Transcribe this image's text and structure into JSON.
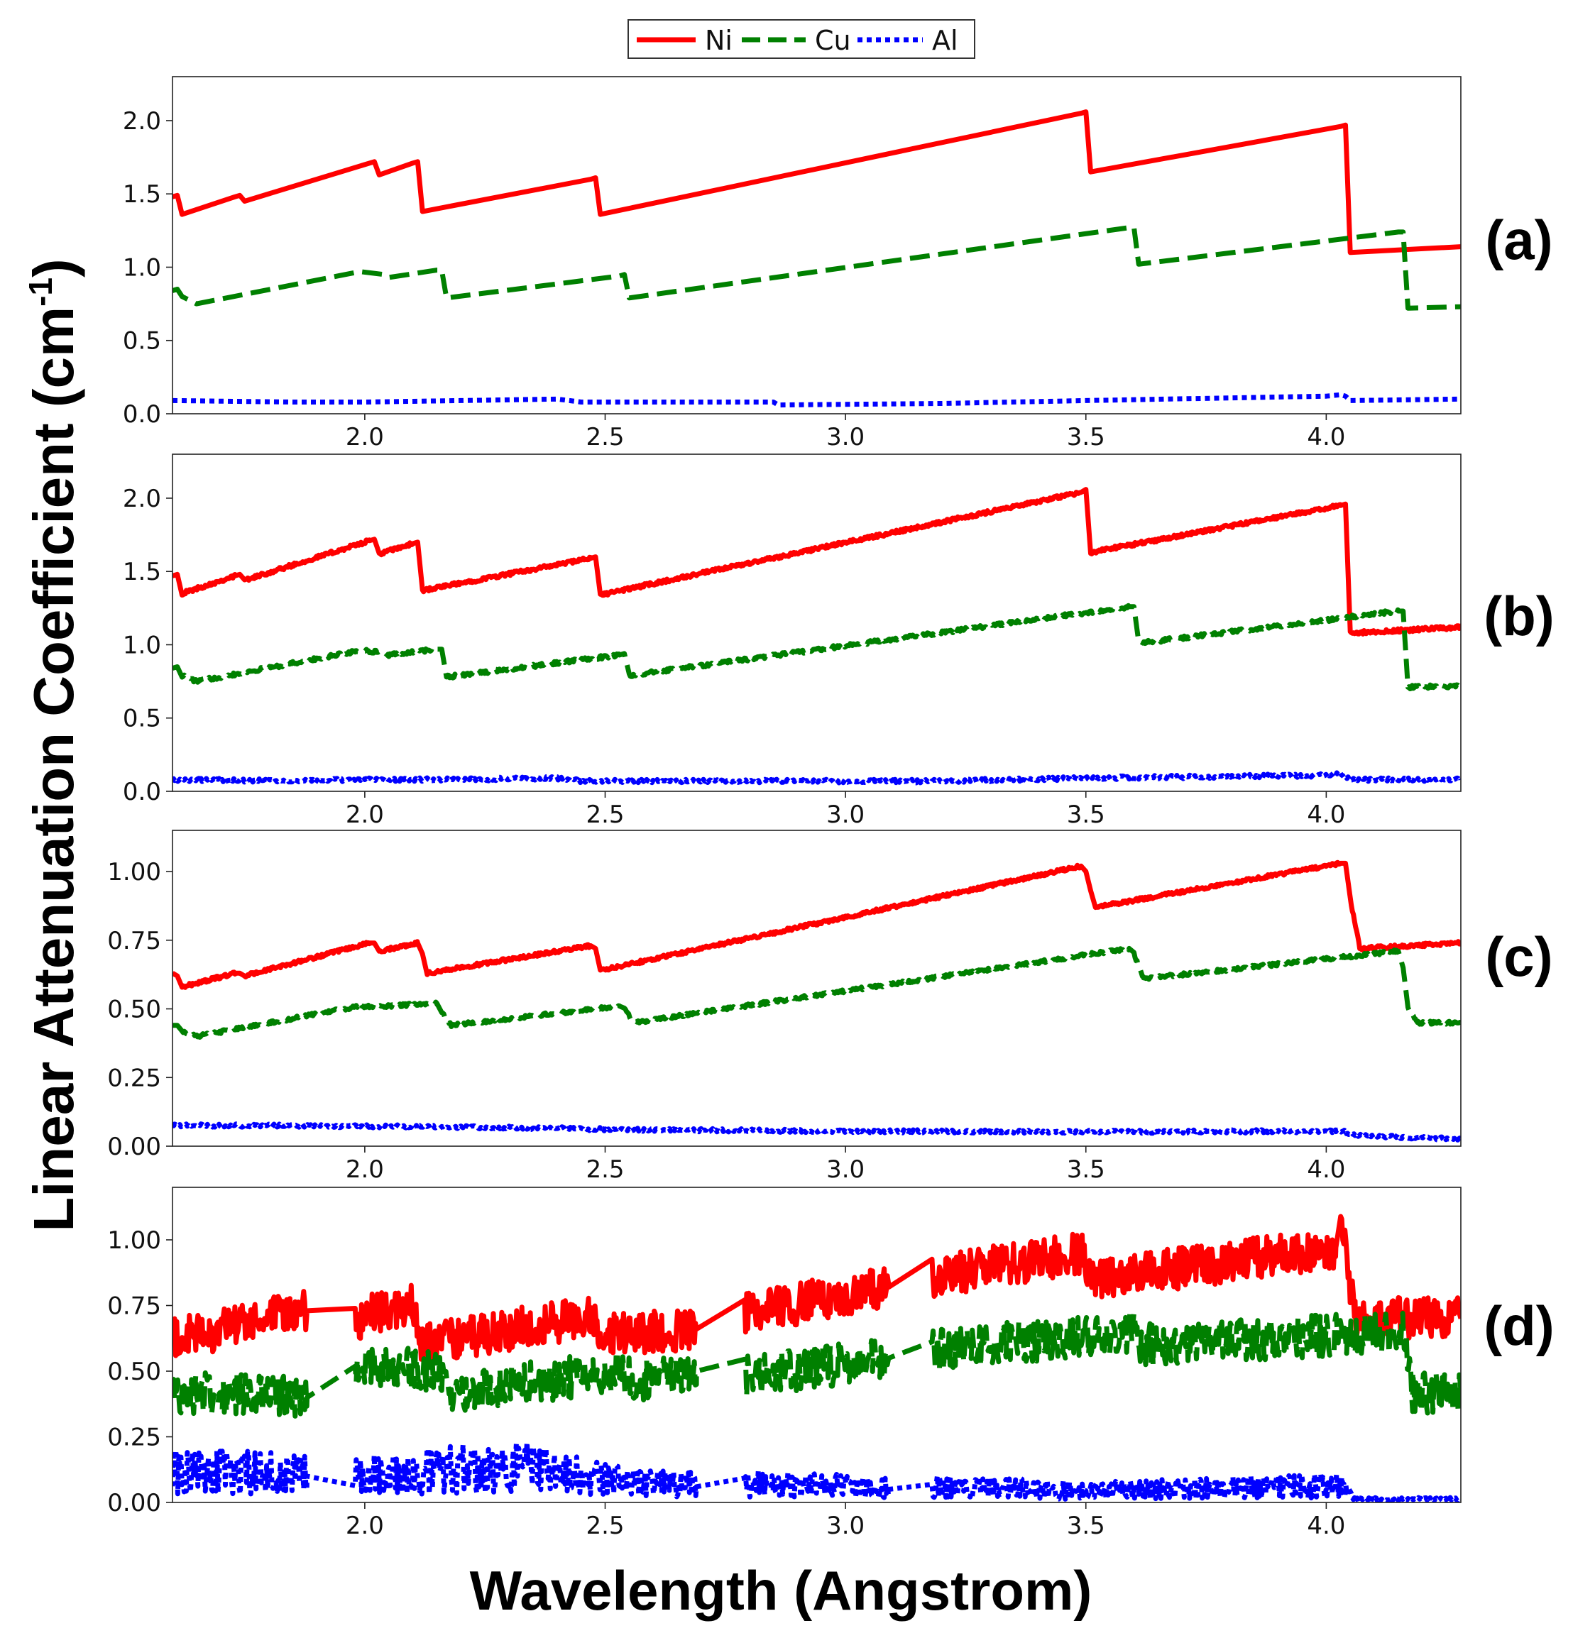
{
  "figure": {
    "ylabel_main": "Linear Attenuation Coefficient (cm",
    "ylabel_sup": "-1",
    "ylabel_close": ")",
    "xlabel": "Wavelength (Angstrom)"
  },
  "legend": [
    {
      "label": "Ni",
      "color": "#ff0000",
      "style": "solid"
    },
    {
      "label": "Cu",
      "color": "#008000",
      "style": "dashed"
    },
    {
      "label": "Al",
      "color": "#0000ff",
      "style": "dotted"
    }
  ],
  "chart_data": [
    {
      "type": "line",
      "panel_label": "(a)",
      "xlim": [
        1.6,
        4.28
      ],
      "ylim": [
        0.0,
        2.3
      ],
      "xticks": [
        "2.0",
        "2.5",
        "3.0",
        "3.5",
        "4.0"
      ],
      "yticks": [
        "0.0",
        "0.5",
        "1.0",
        "1.5",
        "2.0"
      ],
      "noise": 0,
      "series": [
        {
          "name": "Ni",
          "x": [
            1.6,
            1.61,
            1.62,
            1.73,
            1.74,
            1.75,
            2.01,
            2.02,
            2.03,
            2.1,
            2.11,
            2.12,
            2.47,
            2.48,
            2.49,
            3.49,
            3.5,
            3.51,
            4.03,
            4.04,
            4.05,
            4.28
          ],
          "y": [
            1.48,
            1.49,
            1.36,
            1.48,
            1.49,
            1.45,
            1.71,
            1.72,
            1.63,
            1.71,
            1.72,
            1.38,
            1.6,
            1.61,
            1.36,
            2.05,
            2.06,
            1.65,
            1.96,
            1.97,
            1.1,
            1.14
          ]
        },
        {
          "name": "Cu",
          "x": [
            1.6,
            1.61,
            1.62,
            1.65,
            1.99,
            2.04,
            2.05,
            2.15,
            2.16,
            2.17,
            2.53,
            2.54,
            2.55,
            3.59,
            3.6,
            3.61,
            4.15,
            4.16,
            4.17,
            4.28
          ],
          "y": [
            0.84,
            0.85,
            0.8,
            0.75,
            0.97,
            0.95,
            0.93,
            0.98,
            0.98,
            0.79,
            0.94,
            0.95,
            0.79,
            1.27,
            1.27,
            1.02,
            1.24,
            1.24,
            0.72,
            0.73
          ]
        },
        {
          "name": "Al",
          "x": [
            1.6,
            1.85,
            2.0,
            2.2,
            2.4,
            2.45,
            2.7,
            2.85,
            2.86,
            3.2,
            3.5,
            4.0,
            4.03,
            4.04,
            4.05,
            4.28
          ],
          "y": [
            0.09,
            0.08,
            0.08,
            0.09,
            0.1,
            0.08,
            0.08,
            0.08,
            0.06,
            0.07,
            0.09,
            0.12,
            0.13,
            0.12,
            0.09,
            0.1
          ]
        }
      ]
    },
    {
      "type": "line",
      "panel_label": "(b)",
      "xlim": [
        1.6,
        4.28
      ],
      "ylim": [
        0.0,
        2.3
      ],
      "xticks": [
        "2.0",
        "2.5",
        "3.0",
        "3.5",
        "4.0"
      ],
      "yticks": [
        "0.0",
        "0.5",
        "1.0",
        "1.5",
        "2.0"
      ],
      "noise": 0.012,
      "series": [
        {
          "name": "Ni",
          "x": [
            1.6,
            1.61,
            1.62,
            1.73,
            1.74,
            1.75,
            2.01,
            2.02,
            2.03,
            2.1,
            2.11,
            2.12,
            2.47,
            2.48,
            2.49,
            3.49,
            3.5,
            3.51,
            4.03,
            4.04,
            4.05,
            4.28
          ],
          "y": [
            1.47,
            1.48,
            1.35,
            1.47,
            1.48,
            1.44,
            1.71,
            1.72,
            1.62,
            1.69,
            1.7,
            1.37,
            1.59,
            1.6,
            1.34,
            2.04,
            2.06,
            1.63,
            1.95,
            1.96,
            1.08,
            1.12
          ]
        },
        {
          "name": "Cu",
          "x": [
            1.6,
            1.61,
            1.62,
            1.65,
            1.99,
            2.04,
            2.05,
            2.15,
            2.16,
            2.17,
            2.53,
            2.54,
            2.55,
            3.59,
            3.6,
            3.61,
            4.15,
            4.16,
            4.17,
            4.28
          ],
          "y": [
            0.84,
            0.85,
            0.79,
            0.75,
            0.96,
            0.95,
            0.93,
            0.97,
            0.97,
            0.78,
            0.93,
            0.94,
            0.79,
            1.26,
            1.26,
            1.01,
            1.23,
            1.23,
            0.71,
            0.72
          ]
        },
        {
          "name": "Al",
          "x": [
            1.6,
            1.85,
            2.0,
            2.2,
            2.4,
            2.45,
            2.7,
            2.85,
            3.2,
            3.5,
            4.0,
            4.03,
            4.05,
            4.28
          ],
          "y": [
            0.08,
            0.07,
            0.08,
            0.08,
            0.09,
            0.07,
            0.07,
            0.07,
            0.07,
            0.09,
            0.11,
            0.12,
            0.08,
            0.08
          ]
        }
      ]
    },
    {
      "type": "line",
      "panel_label": "(c)",
      "xlim": [
        1.6,
        4.28
      ],
      "ylim": [
        0.0,
        1.15
      ],
      "xticks": [
        "2.0",
        "2.5",
        "3.0",
        "3.5",
        "4.0"
      ],
      "yticks": [
        "0.00",
        "0.25",
        "0.50",
        "0.75",
        "1.00"
      ],
      "noise": 0.006,
      "series": [
        {
          "name": "Ni",
          "x": [
            1.6,
            1.61,
            1.62,
            1.73,
            1.74,
            1.75,
            2.01,
            2.02,
            2.03,
            2.11,
            2.12,
            2.13,
            2.47,
            2.48,
            2.49,
            3.49,
            3.5,
            3.51,
            3.52,
            4.03,
            4.04,
            4.05,
            4.07,
            4.28
          ],
          "y": [
            0.63,
            0.62,
            0.58,
            0.63,
            0.63,
            0.62,
            0.74,
            0.74,
            0.71,
            0.74,
            0.7,
            0.63,
            0.73,
            0.72,
            0.64,
            1.02,
            1.0,
            0.93,
            0.87,
            1.03,
            1.03,
            0.9,
            0.72,
            0.74
          ]
        },
        {
          "name": "Cu",
          "x": [
            1.6,
            1.61,
            1.62,
            1.65,
            1.99,
            2.04,
            2.15,
            2.16,
            2.18,
            2.53,
            2.54,
            2.56,
            3.59,
            3.6,
            3.62,
            4.15,
            4.16,
            4.17,
            4.19,
            4.28
          ],
          "y": [
            0.44,
            0.44,
            0.42,
            0.4,
            0.51,
            0.51,
            0.52,
            0.49,
            0.44,
            0.51,
            0.5,
            0.45,
            0.72,
            0.7,
            0.61,
            0.71,
            0.65,
            0.5,
            0.45,
            0.45
          ]
        },
        {
          "name": "Al",
          "x": [
            1.6,
            1.85,
            2.3,
            2.55,
            3.0,
            3.5,
            4.02,
            4.04,
            4.06,
            4.28
          ],
          "y": [
            0.075,
            0.075,
            0.068,
            0.06,
            0.055,
            0.052,
            0.055,
            0.052,
            0.04,
            0.025
          ]
        }
      ]
    },
    {
      "type": "line",
      "panel_label": "(d)",
      "xlim": [
        1.6,
        4.28
      ],
      "ylim": [
        0.0,
        1.2
      ],
      "xticks": [
        "2.0",
        "2.5",
        "3.0",
        "3.5",
        "4.0"
      ],
      "yticks": [
        "0.00",
        "0.25",
        "0.50",
        "0.75",
        "1.00"
      ],
      "noise": 0.08,
      "gap_segments": [
        [
          1.88,
          1.98
        ],
        [
          2.69,
          2.79
        ],
        [
          3.09,
          3.18
        ]
      ],
      "series": [
        {
          "name": "Ni",
          "x": [
            1.6,
            1.88,
            1.98,
            2.1,
            2.12,
            2.47,
            2.49,
            2.69,
            2.79,
            3.09,
            3.18,
            3.49,
            3.52,
            4.02,
            4.03,
            4.06,
            4.28
          ],
          "y": [
            0.62,
            0.73,
            0.7,
            0.75,
            0.6,
            0.71,
            0.64,
            0.66,
            0.72,
            0.82,
            0.86,
            0.95,
            0.85,
            0.97,
            1.08,
            0.7,
            0.7
          ]
        },
        {
          "name": "Cu",
          "x": [
            1.6,
            1.88,
            1.98,
            2.16,
            2.18,
            2.53,
            2.56,
            2.69,
            2.79,
            3.09,
            3.18,
            3.6,
            3.62,
            4.16,
            4.18,
            4.28
          ],
          "y": [
            0.42,
            0.4,
            0.52,
            0.5,
            0.42,
            0.5,
            0.46,
            0.5,
            0.48,
            0.55,
            0.58,
            0.65,
            0.6,
            0.65,
            0.42,
            0.42
          ]
        },
        {
          "name": "Al",
          "x": [
            1.6,
            1.88,
            1.98,
            2.3,
            2.55,
            2.69,
            2.79,
            3.09,
            3.18,
            3.5,
            4.03,
            4.06,
            4.28
          ],
          "y": [
            0.11,
            0.1,
            0.09,
            0.13,
            0.07,
            0.06,
            0.07,
            0.05,
            0.06,
            0.04,
            0.06,
            0.01,
            0.01
          ]
        }
      ]
    }
  ]
}
